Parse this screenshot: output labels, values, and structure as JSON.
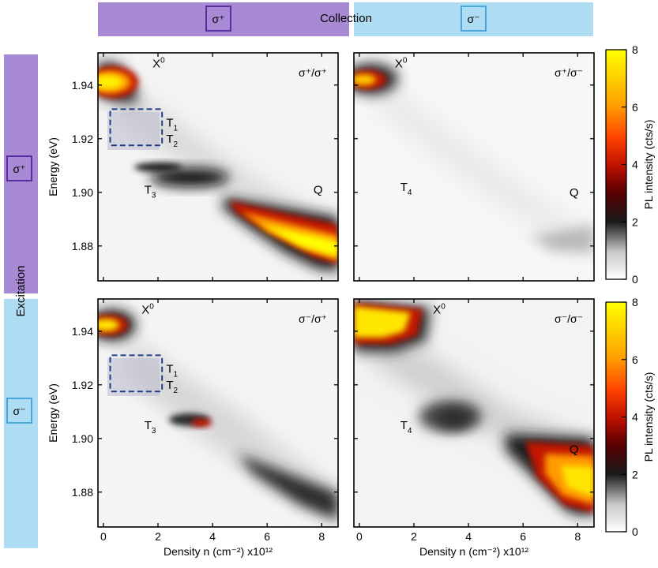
{
  "colors": {
    "collection_sigma_plus": "#a889d4",
    "collection_sigma_minus": "#aedcf3",
    "box_sigma_plus_border": "#5b2ea0",
    "box_sigma_minus_border": "#4aa5d8",
    "dashed_box": "#1f3f8a"
  },
  "header": {
    "collection_label": "Collection",
    "sigma_plus_label": "σ⁺",
    "sigma_minus_label": "σ⁻"
  },
  "sidebar": {
    "excitation_label": "Excitation",
    "sigma_plus_label": "σ⁺",
    "sigma_minus_label": "σ⁻"
  },
  "chart_data": [
    {
      "type": "heatmap",
      "panel_label": "σ⁺/σ⁺",
      "xlabel": "",
      "ylabel": "Energy (eV)",
      "xlim": [
        -0.2,
        8.6
      ],
      "ylim": [
        1.867,
        1.952
      ],
      "xticks": [],
      "yticks": [
        "1.88",
        "1.90",
        "1.92",
        "1.94"
      ],
      "annotations": [
        {
          "text": "X",
          "sup": "0",
          "x": 1.8,
          "y": 1.9465
        },
        {
          "text": "T",
          "sub": "1",
          "x": 2.3,
          "y": 1.9245
        },
        {
          "text": "T",
          "sub": "2",
          "x": 2.3,
          "y": 1.9185
        },
        {
          "text": "T",
          "sub": "3",
          "x": 1.5,
          "y": 1.8995
        },
        {
          "text": "Q",
          "sup": "",
          "x": 7.7,
          "y": 1.8995
        }
      ],
      "dashed_box": {
        "x0": 0.25,
        "x1": 2.15,
        "y0": 1.9175,
        "y1": 1.931
      }
    },
    {
      "type": "heatmap",
      "panel_label": "σ⁺/σ⁻",
      "xlabel": "",
      "ylabel": "",
      "xlim": [
        -0.2,
        8.6
      ],
      "ylim": [
        1.867,
        1.952
      ],
      "xticks": [],
      "yticks": [],
      "annotations": [
        {
          "text": "X",
          "sup": "0",
          "x": 1.3,
          "y": 1.9465
        },
        {
          "text": "T",
          "sub": "4",
          "x": 1.5,
          "y": 1.9005
        },
        {
          "text": "Q",
          "sup": "",
          "x": 7.7,
          "y": 1.8985
        }
      ]
    },
    {
      "type": "heatmap",
      "panel_label": "σ⁻/σ⁺",
      "xlabel": "Density n (cm⁻²) x10¹²",
      "ylabel": "Energy (eV)",
      "xlim": [
        -0.2,
        8.6
      ],
      "ylim": [
        1.867,
        1.952
      ],
      "xticks": [
        "0",
        "2",
        "4",
        "6",
        "8"
      ],
      "yticks": [
        "1.88",
        "1.90",
        "1.92",
        "1.94"
      ],
      "annotations": [
        {
          "text": "X",
          "sup": "0",
          "x": 1.4,
          "y": 1.9465
        },
        {
          "text": "T",
          "sub": "1",
          "x": 2.3,
          "y": 1.9245
        },
        {
          "text": "T",
          "sub": "2",
          "x": 2.3,
          "y": 1.9185
        },
        {
          "text": "T",
          "sub": "3",
          "x": 1.5,
          "y": 1.9035
        }
      ],
      "dashed_box": {
        "x0": 0.25,
        "x1": 2.15,
        "y0": 1.9175,
        "y1": 1.931
      }
    },
    {
      "type": "heatmap",
      "panel_label": "σ⁻/σ⁻",
      "xlabel": "Density n (cm⁻²) x10¹²",
      "ylabel": "",
      "xlim": [
        -0.2,
        8.6
      ],
      "ylim": [
        1.867,
        1.952
      ],
      "xticks": [
        "0",
        "2",
        "4",
        "6",
        "8"
      ],
      "yticks": [],
      "annotations": [
        {
          "text": "X",
          "sup": "0",
          "x": 2.7,
          "y": 1.9465
        },
        {
          "text": "T",
          "sub": "4",
          "x": 1.5,
          "y": 1.9035
        },
        {
          "text": "Q",
          "sup": "",
          "x": 7.7,
          "y": 1.8945
        }
      ]
    }
  ],
  "colorbar": {
    "label": "PL intensity (cts/s)",
    "range": [
      0,
      8
    ],
    "ticks": [
      "0",
      "2",
      "4",
      "6",
      "8"
    ]
  }
}
